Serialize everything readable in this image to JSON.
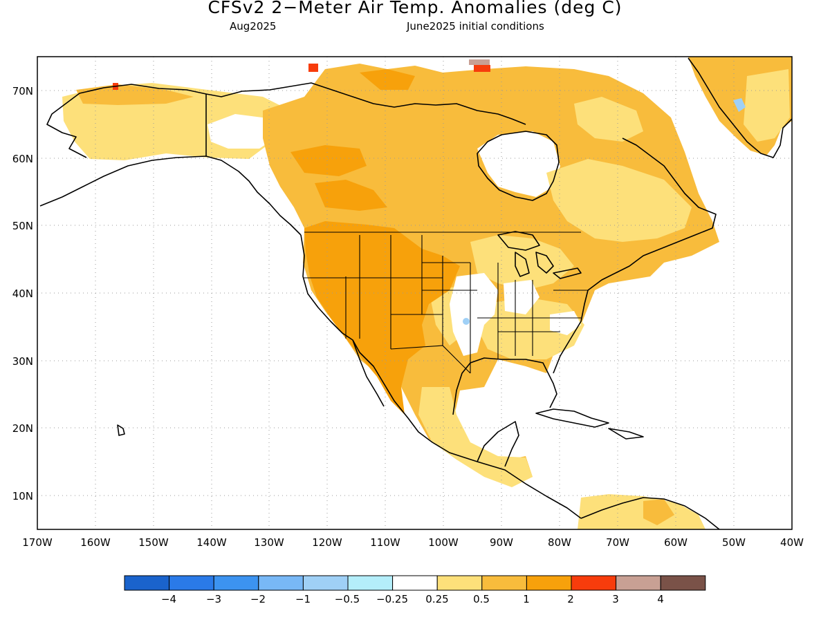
{
  "title": "CFSv2 2−Meter Air Temp. Anomalies (deg C)",
  "subtitle_left": "Aug2025",
  "subtitle_right": "June2025 initial conditions",
  "lat_labels": [
    "70N",
    "60N",
    "50N",
    "40N",
    "30N",
    "20N",
    "10N"
  ],
  "lon_labels": [
    "170W",
    "160W",
    "150W",
    "140W",
    "130W",
    "120W",
    "110W",
    "100W",
    "90W",
    "80W",
    "70W",
    "60W",
    "50W",
    "40W"
  ],
  "colorbar": {
    "colors": [
      "#1a63cc",
      "#2a7ae8",
      "#3c93f0",
      "#78b8f6",
      "#9fd0f6",
      "#b4eefa",
      "#ffffff",
      "#fde07a",
      "#f8bc3c",
      "#f7a10b",
      "#f73c0c",
      "#c8a094",
      "#7a5248"
    ],
    "labels": [
      "−4",
      "−3",
      "−2",
      "−1",
      "−0.5",
      "−0.25",
      "0.25",
      "0.5",
      "1",
      "2",
      "3",
      "4"
    ]
  },
  "legend_colors": {
    "light_anomaly": "#fde07a",
    "moderate_anomaly": "#f8bc3c",
    "strong_anomaly": "#f7a10b",
    "extreme_anomaly": "#f73c0c",
    "cool_anomaly": "#9fd0f6"
  }
}
